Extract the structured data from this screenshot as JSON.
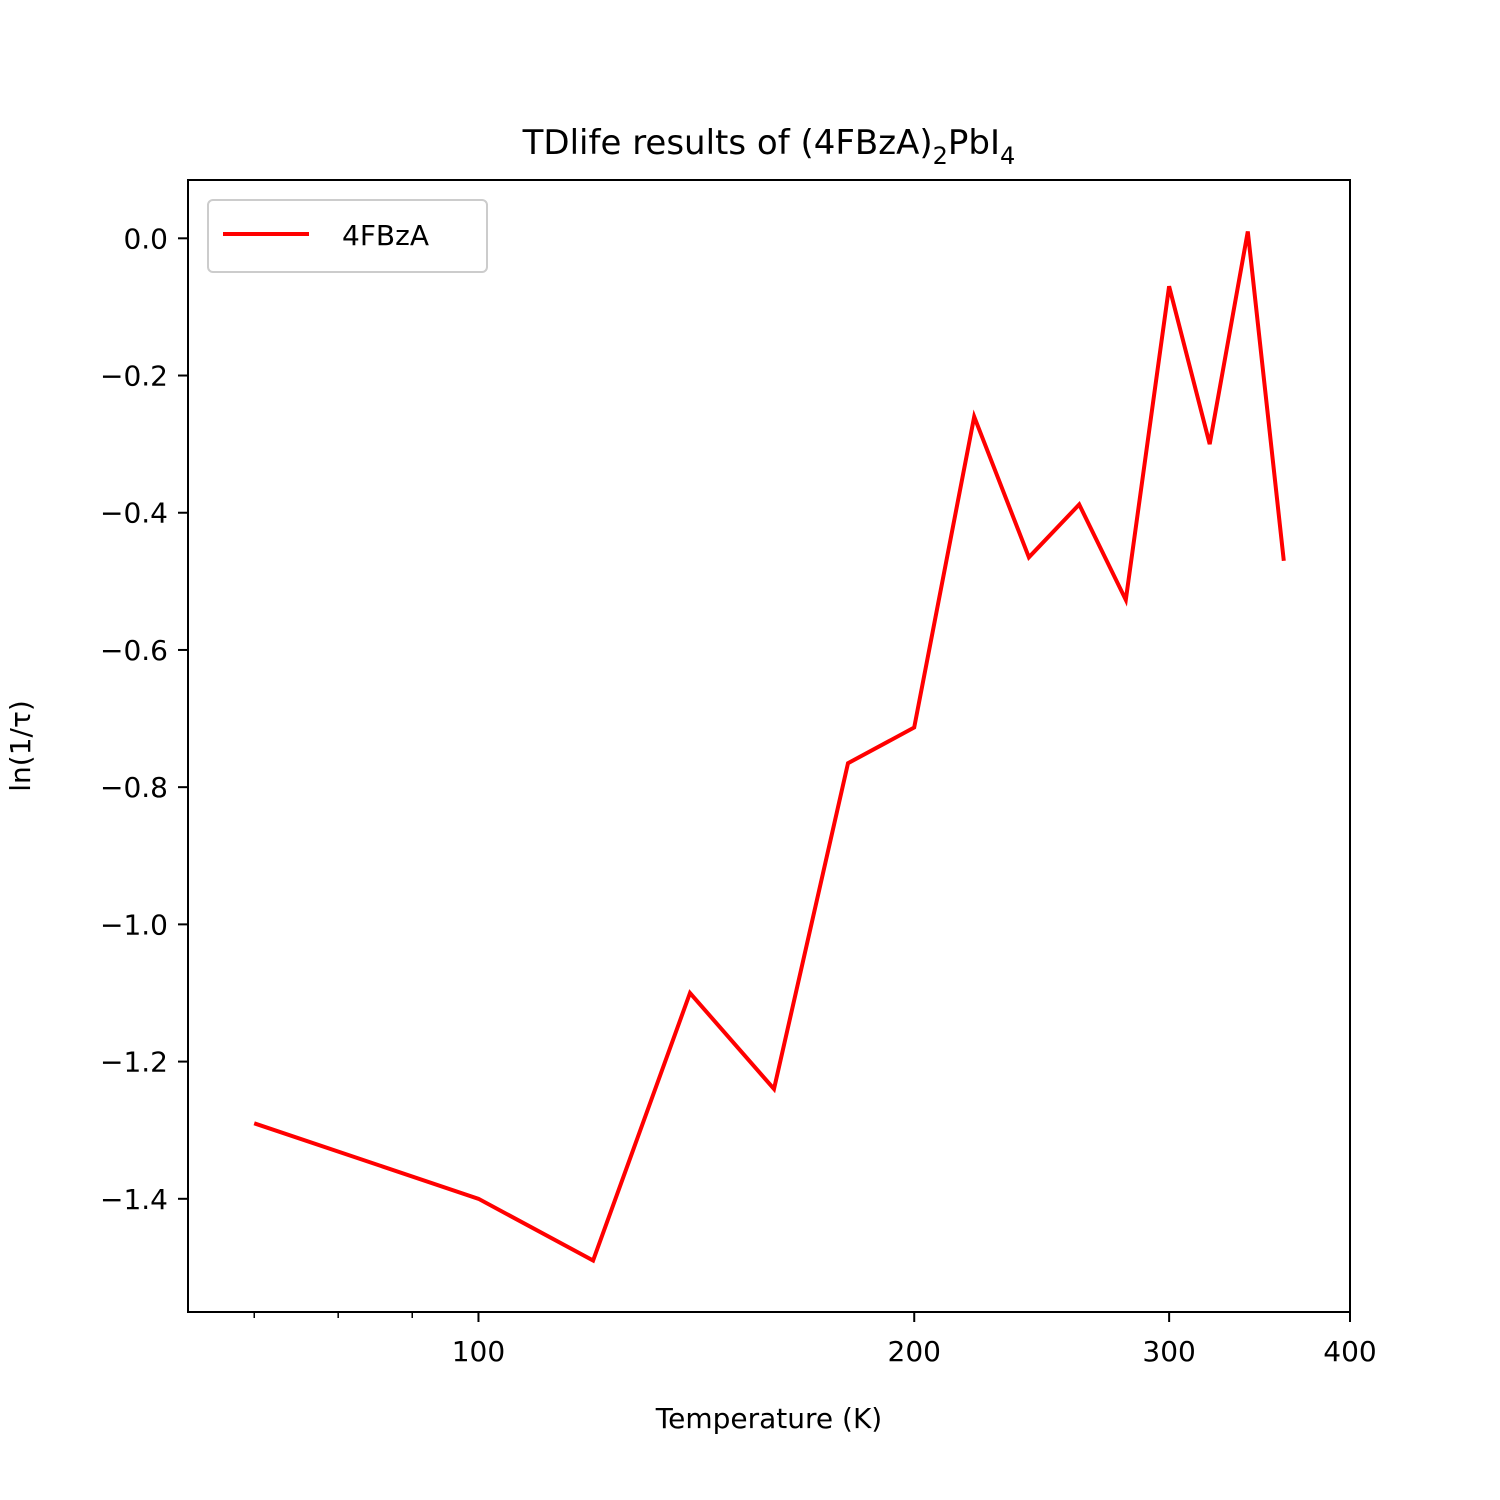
{
  "chart_data": {
    "type": "line",
    "title": {
      "main": "TDlife results of (4FBzA)",
      "sub1": "2",
      "mid": "PbI",
      "sub2": "4"
    },
    "xlabel": "Temperature (K)",
    "ylabel": "ln(1/τ)",
    "x_scale": "log",
    "xlim": [
      63,
      400
    ],
    "ylim": [
      -1.565,
      0.085
    ],
    "x_ticks": [
      {
        "value": 100,
        "label": "100"
      },
      {
        "value": 200,
        "label": "200"
      },
      {
        "value": 300,
        "label": "300"
      },
      {
        "value": 400,
        "label": "400"
      }
    ],
    "x_minor_ticks": [
      70,
      80,
      90
    ],
    "y_ticks": [
      {
        "value": 0.0,
        "label": "0.0"
      },
      {
        "value": -0.2,
        "label": "−0.2"
      },
      {
        "value": -0.4,
        "label": "−0.4"
      },
      {
        "value": -0.6,
        "label": "−0.6"
      },
      {
        "value": -0.8,
        "label": "−0.8"
      },
      {
        "value": -1.0,
        "label": "−1.0"
      },
      {
        "value": -1.2,
        "label": "−1.2"
      },
      {
        "value": -1.4,
        "label": "−1.4"
      }
    ],
    "grid": false,
    "legend": {
      "position": "top-left"
    },
    "series": [
      {
        "name": "4FBzA",
        "color": "#ff0000",
        "x": [
          70,
          100,
          120,
          140,
          160,
          180,
          200,
          220,
          240,
          260,
          280,
          300,
          320,
          340,
          360
        ],
        "y": [
          -1.29,
          -1.4,
          -1.49,
          -1.1,
          -1.24,
          -0.765,
          -0.713,
          -0.26,
          -0.465,
          -0.388,
          -0.527,
          -0.07,
          -0.3,
          0.01,
          -0.47
        ]
      }
    ]
  }
}
